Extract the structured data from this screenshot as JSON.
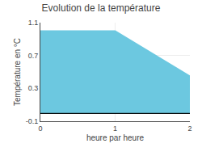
{
  "chart_data": {
    "type": "area",
    "title": "Evolution de la température",
    "xlabel": "heure par heure",
    "ylabel": "Température en °C",
    "x": [
      0,
      1,
      2
    ],
    "values": [
      1.0,
      1.0,
      0.45
    ],
    "color": "#6cc8e0",
    "xlim": [
      0,
      2
    ],
    "xticks": [
      0,
      1,
      2
    ],
    "ylim": [
      -0.1,
      1.1
    ],
    "yticks": [
      -0.1,
      0.3,
      0.7,
      1.1
    ],
    "grid": true
  }
}
